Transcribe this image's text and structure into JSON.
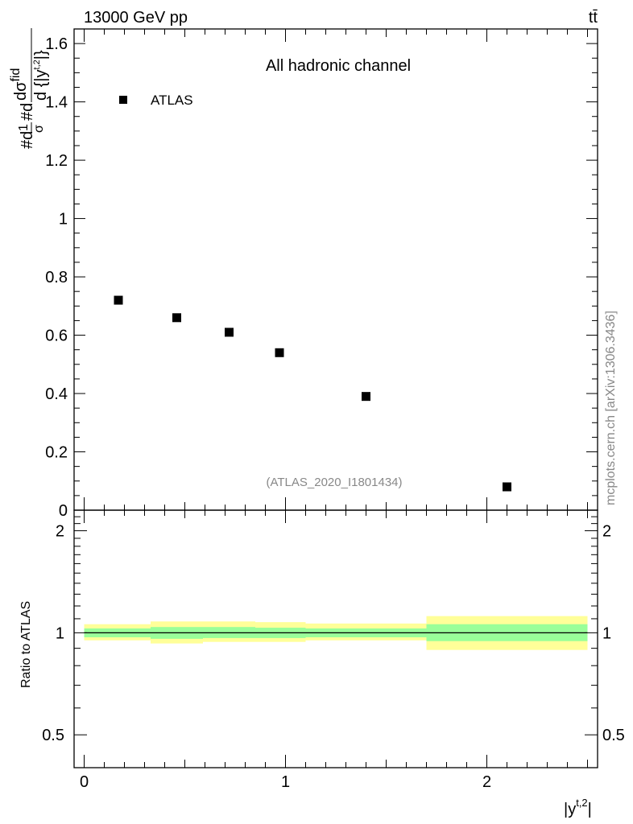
{
  "header": {
    "left": "13000 GeV pp",
    "right": "tt̄"
  },
  "side_label": "mcplots.cern.ch [arXiv:1306.3436]",
  "chart_data": [
    {
      "type": "scatter",
      "title": "All hadronic channel",
      "ylabel": {
        "main": "#d",
        "frac1_num": "1",
        "frac1_den": "σ",
        "mid": "#d",
        "frac2_num": "dσ",
        "frac2_num_sup": "fid",
        "frac2_den": "d {|y",
        "frac2_den_sup": "t,2",
        "frac2_den_close": "|}"
      },
      "ylim": [
        0,
        1.65
      ],
      "xlim": [
        -0.05,
        2.55
      ],
      "yticks": [
        0,
        0.2,
        0.4,
        0.6,
        0.8,
        1,
        1.2,
        1.4,
        1.6
      ],
      "ytick_labels": [
        "0",
        "0.2",
        "0.4",
        "0.6",
        "0.8",
        "1",
        "1.2",
        "1.4",
        "1.6"
      ],
      "legend": {
        "placement": "top-left",
        "entries": [
          "ATLAS"
        ]
      },
      "annotation": "(ATLAS_2020_I1801434)",
      "series": [
        {
          "name": "ATLAS",
          "marker": "square",
          "color": "#000000",
          "x": [
            0.17,
            0.46,
            0.72,
            0.97,
            1.4,
            2.1
          ],
          "y": [
            0.72,
            0.66,
            0.61,
            0.54,
            0.39,
            0.08
          ]
        }
      ]
    },
    {
      "type": "area",
      "ylabel": "Ratio to ATLAS",
      "xlabel": "|y",
      "xlabel_sup": "t,2",
      "xlabel_close": "|",
      "ylim": [
        0.4,
        2.3
      ],
      "xlim": [
        -0.05,
        2.55
      ],
      "yticks": [
        0.5,
        1,
        2
      ],
      "ytick_labels": [
        "0.5",
        "1",
        "2"
      ],
      "xticks": [
        0,
        1,
        2
      ],
      "xtick_labels": [
        "0",
        "1",
        "2"
      ],
      "reference_line": 1,
      "bins": [
        {
          "xlo": 0.0,
          "xhi": 0.33,
          "stat_lo": 0.97,
          "stat_hi": 1.03,
          "tot_lo": 0.95,
          "tot_hi": 1.06
        },
        {
          "xlo": 0.33,
          "xhi": 0.59,
          "stat_lo": 0.96,
          "stat_hi": 1.04,
          "tot_lo": 0.93,
          "tot_hi": 1.08
        },
        {
          "xlo": 0.59,
          "xhi": 0.85,
          "stat_lo": 0.965,
          "stat_hi": 1.04,
          "tot_lo": 0.94,
          "tot_hi": 1.08
        },
        {
          "xlo": 0.85,
          "xhi": 1.1,
          "stat_lo": 0.965,
          "stat_hi": 1.035,
          "tot_lo": 0.94,
          "tot_hi": 1.075
        },
        {
          "xlo": 1.1,
          "xhi": 1.7,
          "stat_lo": 0.97,
          "stat_hi": 1.03,
          "tot_lo": 0.95,
          "tot_hi": 1.065
        },
        {
          "xlo": 1.7,
          "xhi": 2.5,
          "stat_lo": 0.945,
          "stat_hi": 1.06,
          "tot_lo": 0.89,
          "tot_hi": 1.12
        }
      ],
      "colors": {
        "stat": "#99ff99",
        "tot": "#ffff99"
      }
    }
  ]
}
